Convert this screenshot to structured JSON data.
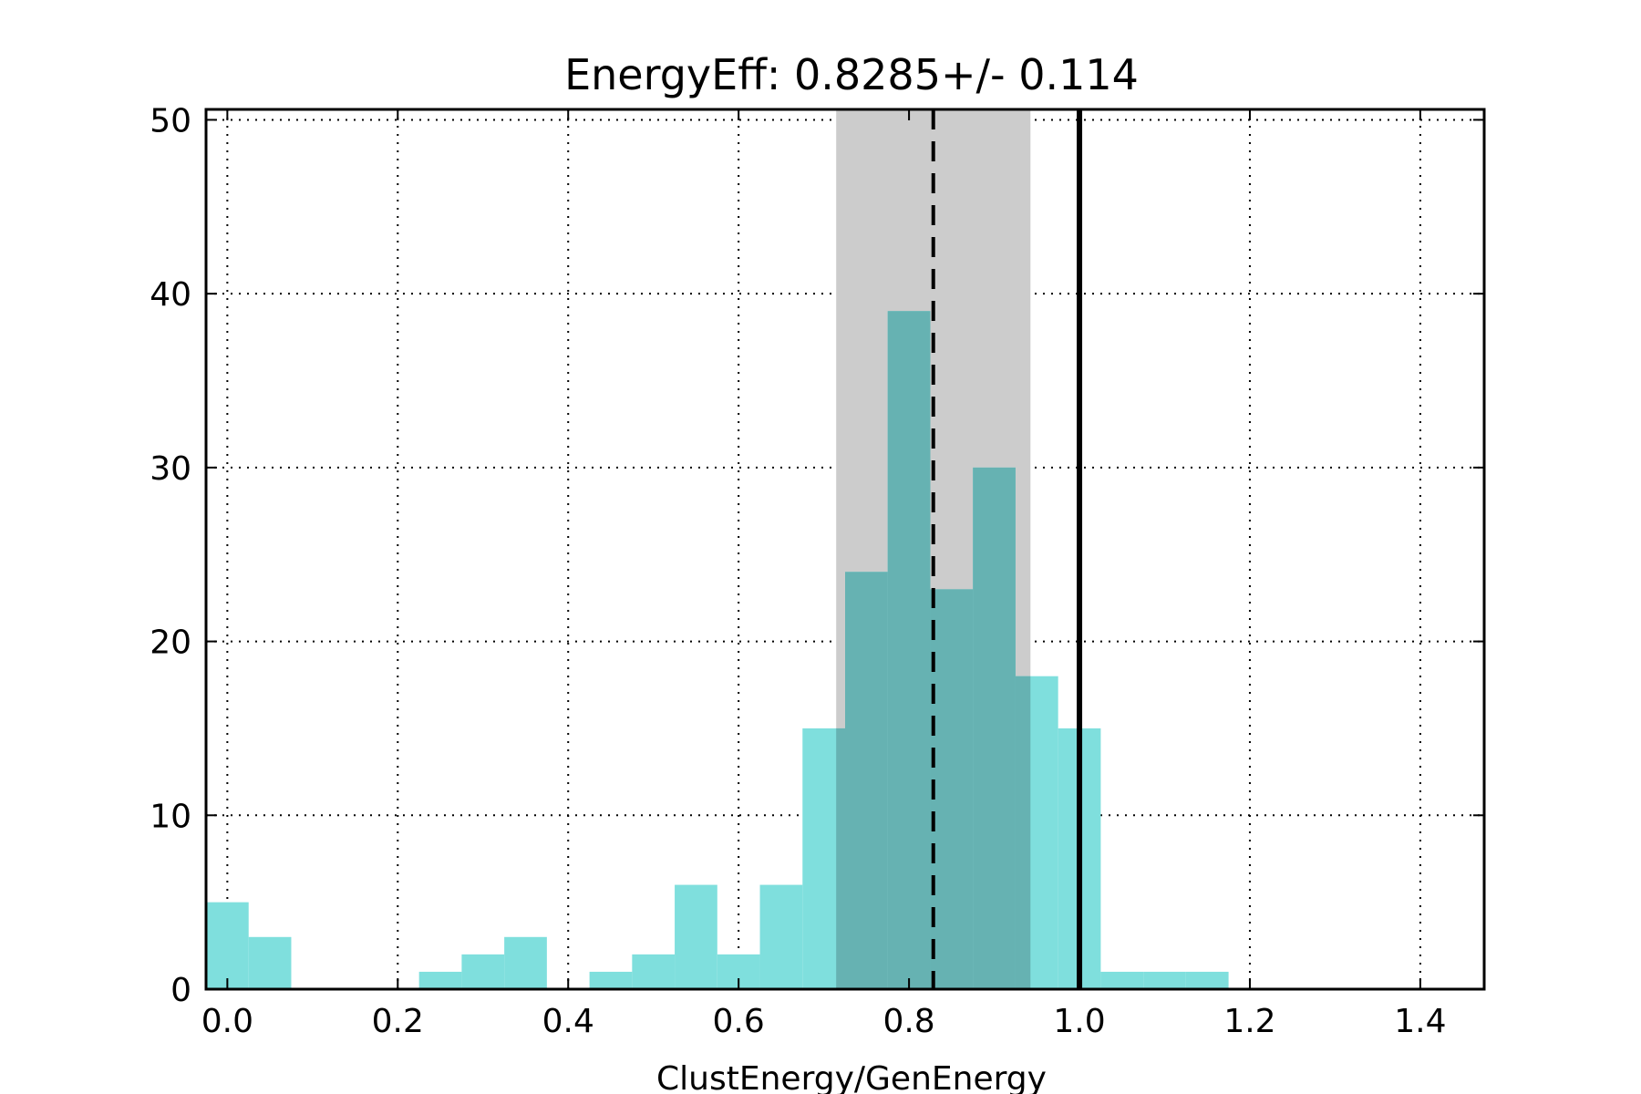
{
  "chart_data": {
    "type": "bar",
    "title": "EnergyEff: 0.8285+/- 0.114",
    "xlabel": "ClustEnergy/GenEnergy",
    "ylabel": "",
    "xlim": [
      -0.025,
      1.475
    ],
    "ylim": [
      0,
      50.6
    ],
    "grid": true,
    "x_ticks": [
      0.0,
      0.2,
      0.4,
      0.6,
      0.8,
      1.0,
      1.2,
      1.4
    ],
    "x_tick_labels": [
      "0.0",
      "0.2",
      "0.4",
      "0.6",
      "0.8",
      "1.0",
      "1.2",
      "1.4"
    ],
    "y_ticks": [
      0,
      10,
      20,
      30,
      40,
      50
    ],
    "y_tick_labels": [
      "0",
      "10",
      "20",
      "30",
      "40",
      "50"
    ],
    "bin_edges": [
      -0.025,
      0.025,
      0.075,
      0.125,
      0.175,
      0.225,
      0.275,
      0.325,
      0.375,
      0.425,
      0.475,
      0.525,
      0.575,
      0.625,
      0.675,
      0.725,
      0.775,
      0.825,
      0.875,
      0.925,
      0.975,
      1.025,
      1.075,
      1.125,
      1.175,
      1.225
    ],
    "counts": [
      5,
      3,
      0,
      0,
      0,
      1,
      2,
      3,
      0,
      1,
      2,
      6,
      2,
      6,
      15,
      24,
      39,
      23,
      30,
      18,
      15,
      1,
      1,
      1,
      0
    ],
    "mean": 0.8285,
    "std": 0.114,
    "band": [
      0.7145,
      0.9425
    ],
    "reference_line": 1.0,
    "colors": {
      "bars": "#7fdfdd",
      "band": "#cccccc",
      "overlap": "#66b2b2",
      "lines": "#000000"
    }
  }
}
